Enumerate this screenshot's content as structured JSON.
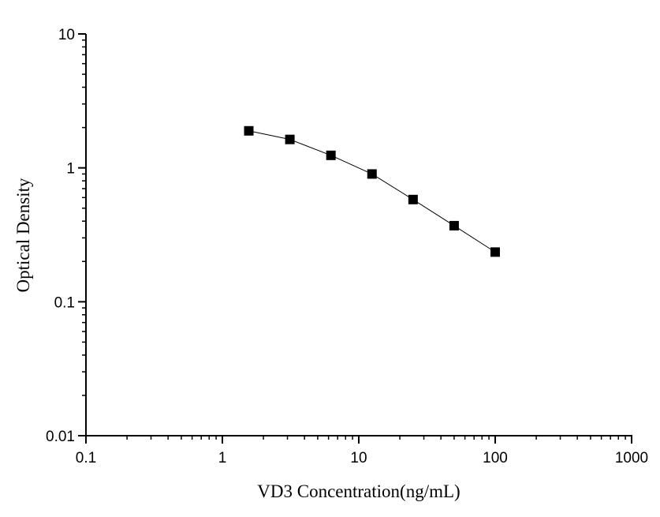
{
  "chart_data": {
    "type": "line",
    "title": "",
    "xlabel": "VD3 Concentration(ng/mL)",
    "ylabel": "Optical Density",
    "xscale": "log",
    "yscale": "log",
    "xlim": [
      0.1,
      1000
    ],
    "ylim": [
      0.01,
      10
    ],
    "xticks": [
      "0.1",
      "1",
      "10",
      "100",
      "1000"
    ],
    "yticks": [
      "0.01",
      "0.1",
      "1",
      "10"
    ],
    "grid": false,
    "legend": "none",
    "marker": "square",
    "color": "#000000",
    "series": [
      {
        "x": [
          1.5625,
          3.125,
          6.25,
          12.5,
          25,
          50,
          100
        ],
        "y": [
          1.89,
          1.63,
          1.24,
          0.9,
          0.58,
          0.37,
          0.235
        ]
      }
    ]
  }
}
